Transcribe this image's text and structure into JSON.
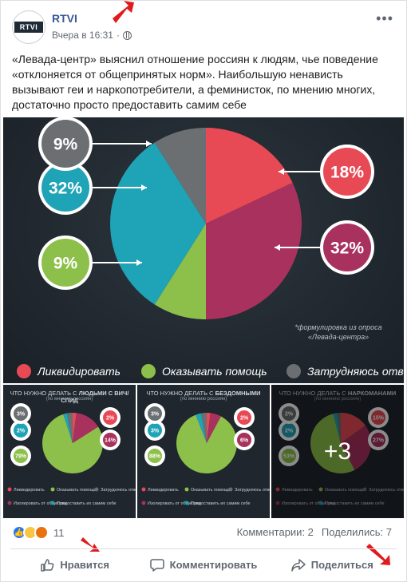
{
  "post": {
    "page_name": "RTVI",
    "avatar_text": "RTVI",
    "time": "Вчера в 16:31",
    "separator": "·",
    "text": "«Левада-центр» выяснил отношение россиян к людям, чье поведение «отклоняется от общепринятых норм». Наибольшую ненависть вызывают геи и наркопотребители, а феминисток, по мнению многих, достаточно просто предоставить самим себе"
  },
  "main_chart": {
    "footnote_line1": "*формулировка из опроса",
    "footnote_line2": "«Левада-центра»",
    "legend": [
      "Ликвидировать",
      "Оказывать помощь",
      "Затрудняюсь ответить"
    ]
  },
  "colors": {
    "liquidate": "#e84a55",
    "help": "#8dc04a",
    "unsure": "#6b6f72",
    "isolate": "#a8325d",
    "leave": "#1fa3b6",
    "bubble_bg": "#ffffff"
  },
  "thumbs": [
    {
      "title_prefix": "ЧТО НУЖНО ДЕЛАТЬ С ",
      "title_bold": "ЛЮДЬМИ С ВИЧ/СПИД",
      "sub": "(по мнению россиян)"
    },
    {
      "title_prefix": "ЧТО НУЖНО ДЕЛАТЬ С ",
      "title_bold": "БЕЗДОМНЫМИ",
      "sub": "(по мнению россиян)"
    },
    {
      "title_prefix": "ЧТО НУЖНО ДЕЛАТЬ С ",
      "title_bold": "НАРКОМАНАМИ",
      "sub": "(по мнению россиян)",
      "overlay": "+3"
    }
  ],
  "thumb_legend": [
    "Ликвидировать",
    "Оказывать помощь",
    "Затрудняюсь ответить",
    "Изолировать от общества",
    "Предоставить их самим себе"
  ],
  "chart_data": [
    {
      "type": "pie",
      "title": "",
      "slices": [
        {
          "label": "Ликвидировать",
          "value": 18,
          "display": "18%",
          "color": "#e84a55"
        },
        {
          "label": "Изолировать от общества",
          "value": 32,
          "display": "32%",
          "color": "#a8325d"
        },
        {
          "label": "Оказывать помощь",
          "value": 9,
          "display": "9%",
          "color": "#8dc04a"
        },
        {
          "label": "Предоставить их самим себе",
          "value": 32,
          "display": "32%",
          "color": "#1fa3b6"
        },
        {
          "label": "Затрудняюсь ответить",
          "value": 9,
          "display": "9%",
          "color": "#6b6f72"
        }
      ]
    },
    {
      "type": "pie",
      "title": "ЧТО НУЖНО ДЕЛАТЬ С ЛЮДЬМИ С ВИЧ/СПИД",
      "slices": [
        {
          "label": "Ликвидировать",
          "value": 2,
          "display": "2%",
          "color": "#e84a55"
        },
        {
          "label": "Изолировать от общества",
          "value": 14,
          "display": "14%",
          "color": "#a8325d"
        },
        {
          "label": "Оказывать помощь",
          "value": 79,
          "display": "79%",
          "color": "#8dc04a"
        },
        {
          "label": "Предоставить их самим себе",
          "value": 2,
          "display": "2%",
          "color": "#1fa3b6"
        },
        {
          "label": "Затрудняюсь ответить",
          "value": 3,
          "display": "3%",
          "color": "#6b6f72"
        }
      ]
    },
    {
      "type": "pie",
      "title": "ЧТО НУЖНО ДЕЛАТЬ С БЕЗДОМНЫМИ",
      "slices": [
        {
          "label": "Ликвидировать",
          "value": 2,
          "display": "2%",
          "color": "#e84a55"
        },
        {
          "label": "Изолировать от общества",
          "value": 6,
          "display": "6%",
          "color": "#a8325d"
        },
        {
          "label": "Оказывать помощь",
          "value": 88,
          "display": "88%",
          "color": "#8dc04a"
        },
        {
          "label": "Предоставить их самим себе",
          "value": 3,
          "display": "3%",
          "color": "#1fa3b6"
        },
        {
          "label": "Затрудняюсь ответить",
          "value": 3,
          "display": "3%",
          "color": "#6b6f72"
        }
      ]
    },
    {
      "type": "pie",
      "title": "ЧТО НУЖНО ДЕЛАТЬ С НАРКОМАНАМИ",
      "slices": [
        {
          "label": "Ликвидировать",
          "value": 15,
          "display": "15%",
          "color": "#e84a55"
        },
        {
          "label": "Изолировать от общества",
          "value": 27,
          "display": "27%",
          "color": "#a8325d"
        },
        {
          "label": "Оказывать помощь",
          "value": 53,
          "display": "53%",
          "color": "#8dc04a"
        },
        {
          "label": "Предоставить их самим себе",
          "value": 2,
          "display": "2%",
          "color": "#1fa3b6"
        },
        {
          "label": "Затрудняюсь ответить",
          "value": 2,
          "display": "2%",
          "color": "#6b6f72"
        }
      ]
    }
  ],
  "footer": {
    "reaction_count": "11",
    "comments": "Комментарии: 2",
    "shares": "Поделились: 7",
    "like_label": "Нравится",
    "comment_label": "Комментировать",
    "share_label": "Поделиться"
  },
  "icons": [
    "globe-icon",
    "more-options-icon",
    "like-reaction-icon",
    "sad-reaction-icon",
    "angry-reaction-icon",
    "thumbs-up-icon",
    "comment-icon",
    "share-icon"
  ]
}
